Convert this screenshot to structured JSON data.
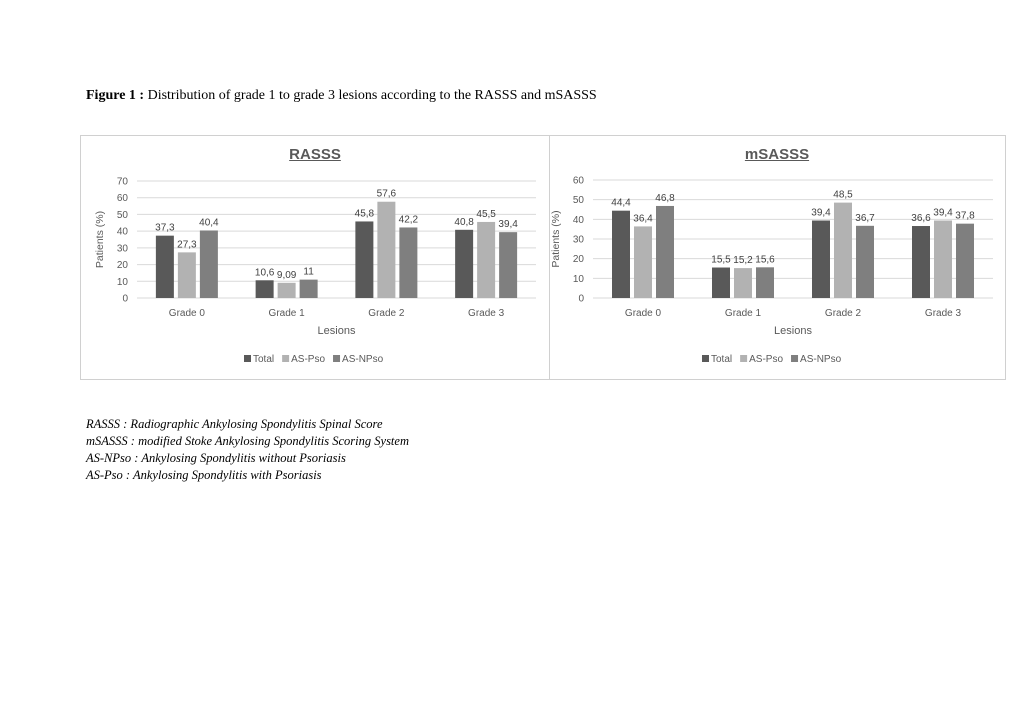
{
  "caption": {
    "label": "Figure 1 :",
    "text": " Distribution of grade 1 to grade 3 lesions according to the RASSS and mSASSS"
  },
  "colors": {
    "Total": "#595959",
    "AS-Pso": "#b2b2b2",
    "AS-NPso": "#7f7f7f"
  },
  "chart_data": [
    {
      "type": "bar",
      "title": "RASSS",
      "xlabel": "Lesions",
      "ylabel": "Patients (%)",
      "ylim": [
        0,
        70
      ],
      "yticks": [
        "0",
        "10",
        "20",
        "30",
        "40",
        "50",
        "60",
        "70"
      ],
      "categories": [
        "Grade 0",
        "Grade 1",
        "Grade 2",
        "Grade 3"
      ],
      "legend_position": "bottom",
      "grid": true,
      "series": [
        {
          "name": "Total",
          "values": [
            37.3,
            10.6,
            45.8,
            40.8
          ],
          "labels": [
            "37,3",
            "10,6",
            "45,8",
            "40,8"
          ]
        },
        {
          "name": "AS-Pso",
          "values": [
            27.3,
            9.09,
            57.6,
            45.5
          ],
          "labels": [
            "27,3",
            "9,09",
            "57,6",
            "45,5"
          ]
        },
        {
          "name": "AS-NPso",
          "values": [
            40.4,
            11,
            42.2,
            39.4
          ],
          "labels": [
            "40,4",
            "11",
            "42,2",
            "39,4"
          ]
        }
      ]
    },
    {
      "type": "bar",
      "title": "mSASSS",
      "xlabel": "Lesions",
      "ylabel": "Patients (%)",
      "ylim": [
        0,
        60
      ],
      "yticks": [
        "0",
        "10",
        "20",
        "30",
        "40",
        "50",
        "60"
      ],
      "categories": [
        "Grade 0",
        "Grade 1",
        "Grade 2",
        "Grade 3"
      ],
      "legend_position": "bottom",
      "grid": true,
      "series": [
        {
          "name": "Total",
          "values": [
            44.4,
            15.5,
            39.4,
            36.6
          ],
          "labels": [
            "44,4",
            "15,5",
            "39,4",
            "36,6"
          ]
        },
        {
          "name": "AS-Pso",
          "values": [
            36.4,
            15.2,
            48.5,
            39.4
          ],
          "labels": [
            "36,4",
            "15,2",
            "48,5",
            "39,4"
          ]
        },
        {
          "name": "AS-NPso",
          "values": [
            46.8,
            15.6,
            36.7,
            37.8
          ],
          "labels": [
            "46,8",
            "15,6",
            "36,7",
            "37,8"
          ]
        }
      ]
    }
  ],
  "footnotes": [
    "RASSS : Radiographic Ankylosing Spondylitis Spinal Score",
    "mSASSS : modified Stoke Ankylosing Spondylitis Scoring System",
    "AS-NPso : Ankylosing Spondylitis without Psoriasis",
    "AS-Pso : Ankylosing Spondylitis with Psoriasis"
  ]
}
